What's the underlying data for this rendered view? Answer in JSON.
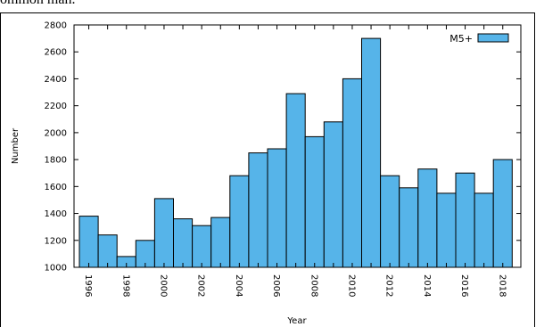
{
  "top_text": "ommon man.",
  "chart_data": {
    "type": "bar",
    "categories": [
      "1996",
      "1997",
      "1998",
      "1999",
      "2000",
      "2001",
      "2002",
      "2003",
      "2004",
      "2005",
      "2006",
      "2007",
      "2008",
      "2009",
      "2010",
      "2011",
      "2012",
      "2013",
      "2014",
      "2015",
      "2016",
      "2017",
      "2018"
    ],
    "series": [
      {
        "name": "M5+",
        "values": [
          1380,
          1240,
          1080,
          1200,
          1510,
          1360,
          1310,
          1370,
          1680,
          1850,
          1880,
          2290,
          1970,
          2080,
          2400,
          2700,
          1680,
          1590,
          1730,
          1550,
          1700,
          1550,
          1800
        ],
        "color": "#56b4e9"
      }
    ],
    "tick_labels": [
      "1996",
      "1998",
      "2000",
      "2002",
      "2004",
      "2006",
      "2008",
      "2010",
      "2012",
      "2014",
      "2016",
      "2018"
    ],
    "y_ticks": [
      1000,
      1200,
      1400,
      1600,
      1800,
      2000,
      2200,
      2400,
      2600,
      2800
    ],
    "title": "",
    "xlabel": "Year",
    "ylabel": "Number",
    "ylim": [
      1000,
      2800
    ],
    "grid": false,
    "legend": "top-right"
  }
}
